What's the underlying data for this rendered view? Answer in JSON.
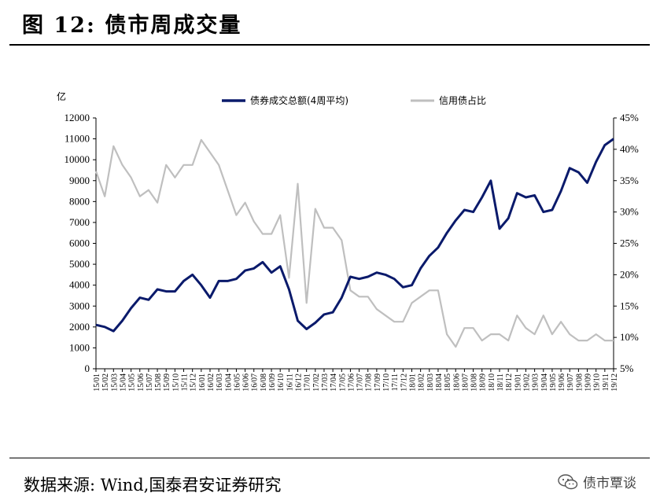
{
  "figure": {
    "title": "图 12:  债市周成交量",
    "source": "数据来源:  Wind,国泰君安证券研究",
    "watermark": "债市覃谈",
    "watermark_icon": "wechat-icon"
  },
  "chart_data": {
    "type": "line",
    "title": "",
    "y_left": {
      "unit": "亿",
      "ylim": [
        0,
        12000
      ],
      "ticks": [
        0,
        1000,
        2000,
        3000,
        4000,
        5000,
        6000,
        7000,
        8000,
        9000,
        10000,
        11000,
        12000
      ]
    },
    "y_right": {
      "ylim": [
        5,
        45
      ],
      "ticks": [
        "5%",
        "10%",
        "15%",
        "20%",
        "25%",
        "30%",
        "35%",
        "40%",
        "45%"
      ]
    },
    "legend_position": "top-center",
    "grid": false,
    "x_tick_labels": [
      "15/01",
      "15/02",
      "15/03",
      "15/04",
      "15/05",
      "15/06",
      "15/07",
      "15/08",
      "15/09",
      "15/10",
      "15/11",
      "15/12",
      "16/01",
      "16/02",
      "16/03",
      "16/04",
      "16/05",
      "16/06",
      "16/07",
      "16/08",
      "16/09",
      "16/10",
      "16/11",
      "16/12",
      "17/01",
      "17/02",
      "17/03",
      "17/04",
      "17/05",
      "17/06",
      "17/07",
      "17/08",
      "17/09",
      "17/10",
      "17/11",
      "17/12",
      "18/01",
      "18/02",
      "18/03",
      "18/04",
      "18/05",
      "18/06",
      "18/07",
      "18/08",
      "18/09",
      "18/10",
      "18/11",
      "18/12",
      "19/01",
      "19/02",
      "19/03",
      "19/04",
      "19/05",
      "19/06",
      "19/07",
      "19/08",
      "19/09",
      "19/10",
      "19/11",
      "19/12"
    ],
    "series": [
      {
        "name": "债券成交总额(4周平均)",
        "axis": "left",
        "color": "#0a1a6b",
        "values": [
          2100,
          2000,
          1800,
          2300,
          2900,
          3400,
          3300,
          3800,
          3700,
          3700,
          4200,
          4500,
          4000,
          3400,
          4200,
          4200,
          4300,
          4700,
          4800,
          5100,
          4600,
          4900,
          3800,
          2300,
          1900,
          2200,
          2600,
          2700,
          3400,
          4400,
          4300,
          4400,
          4600,
          4500,
          4300,
          3900,
          4000,
          4800,
          5400,
          5800,
          6500,
          7100,
          7600,
          7500,
          8200,
          9000,
          6700,
          7200,
          8400,
          8200,
          8300,
          7500,
          7600,
          8500,
          9600,
          9400,
          8900,
          9900,
          10700,
          11000
        ]
      },
      {
        "name": "信用债占比",
        "axis": "right",
        "color": "#bfbfbf",
        "values": [
          36.5,
          32.5,
          40.5,
          37.5,
          35.5,
          32.5,
          33.5,
          31.5,
          37.5,
          35.5,
          37.5,
          37.5,
          41.5,
          39.5,
          37.5,
          33.5,
          29.5,
          31.5,
          28.5,
          26.5,
          26.5,
          29.5,
          19.5,
          34.5,
          15.5,
          30.5,
          27.5,
          27.5,
          25.5,
          17.5,
          16.5,
          16.5,
          14.5,
          13.5,
          12.5,
          12.5,
          15.5,
          16.5,
          17.5,
          17.5,
          10.5,
          8.5,
          11.5,
          11.5,
          9.5,
          10.5,
          10.5,
          9.5,
          13.5,
          11.5,
          10.5,
          13.5,
          10.5,
          12.5,
          10.5,
          9.5,
          9.5,
          10.5,
          9.5,
          9.5
        ]
      }
    ]
  }
}
